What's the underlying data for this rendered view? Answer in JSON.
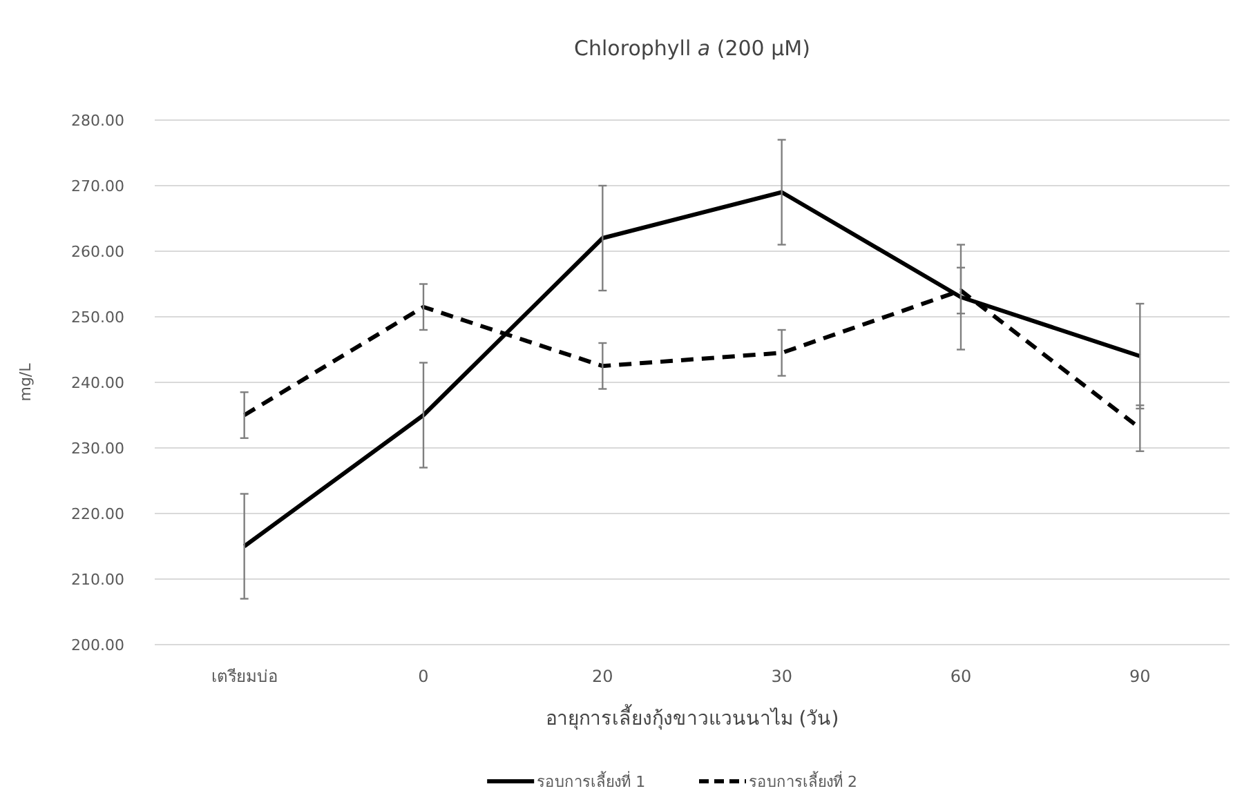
{
  "chart_data": {
    "type": "line",
    "title": "Chlorophyll *a* (200 µM)",
    "xlabel": "อายุการเลี้ยงกุ้งขาวแวนนาไม (วัน)",
    "ylabel": "mg/L",
    "categories": [
      "เตรียมบ่อ",
      "0",
      "20",
      "30",
      "60",
      "90"
    ],
    "series": [
      {
        "name": "รอบการเลี้ยงที่ 1",
        "color": "#000000",
        "line_style": "solid",
        "values": [
          215,
          235,
          262,
          269,
          253,
          244
        ],
        "errors": [
          8,
          8,
          8,
          8,
          8,
          8
        ]
      },
      {
        "name": "รอบการเลี้ยงที่ 2",
        "color": "#000000",
        "line_style": "dashed",
        "values": [
          235,
          251.5,
          242.5,
          244.5,
          254,
          233
        ],
        "errors": [
          3.5,
          3.5,
          3.5,
          3.5,
          3.5,
          3.5
        ]
      }
    ],
    "ylim": [
      200,
      280
    ],
    "yticks": [
      {
        "value": 200,
        "label": "200.00"
      },
      {
        "value": 210,
        "label": "210.00"
      },
      {
        "value": 220,
        "label": "220.00"
      },
      {
        "value": 230,
        "label": "230.00"
      },
      {
        "value": 240,
        "label": "240.00"
      },
      {
        "value": 250,
        "label": "250.00"
      },
      {
        "value": 260,
        "label": "260.00"
      },
      {
        "value": 270,
        "label": "270.00"
      },
      {
        "value": 280,
        "label": "280.00"
      }
    ],
    "grid": "y",
    "legend": "bottom",
    "marker": "none"
  }
}
